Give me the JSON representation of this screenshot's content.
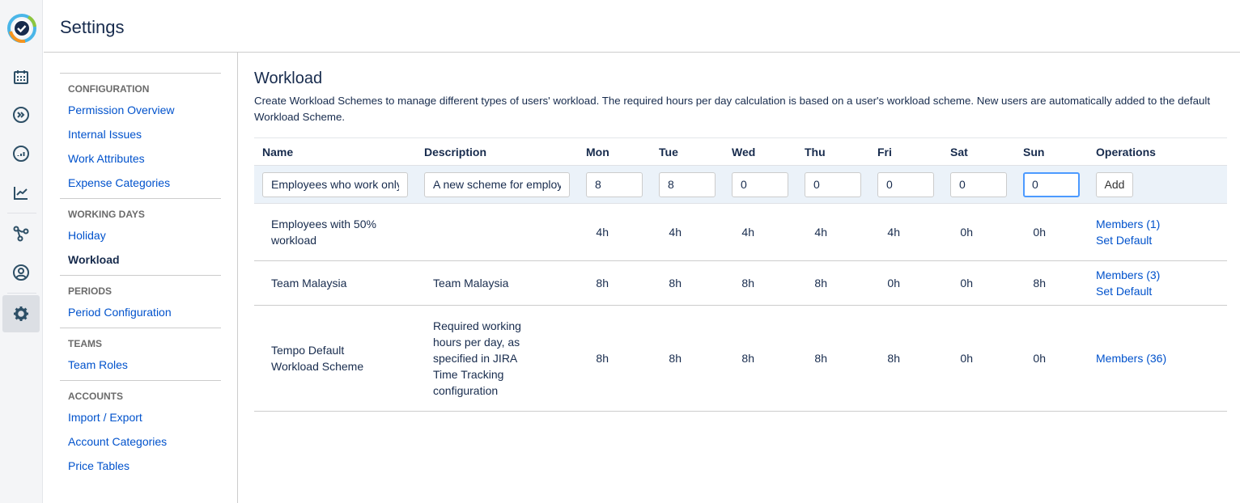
{
  "header": {
    "title": "Settings"
  },
  "menu": {
    "groups": [
      {
        "heading": "CONFIGURATION",
        "items": [
          "Permission Overview",
          "Internal Issues",
          "Work Attributes",
          "Expense Categories"
        ]
      },
      {
        "heading": "WORKING DAYS",
        "items": [
          "Holiday",
          "Workload"
        ],
        "selected": "Workload"
      },
      {
        "heading": "PERIODS",
        "items": [
          "Period Configuration"
        ]
      },
      {
        "heading": "TEAMS",
        "items": [
          "Team Roles"
        ]
      },
      {
        "heading": "ACCOUNTS",
        "items": [
          "Import / Export",
          "Account Categories",
          "Price Tables"
        ]
      }
    ]
  },
  "main": {
    "title": "Workload",
    "description": "Create Workload Schemes to manage different types of users' workload. The required hours per day calculation is based on a user's workload scheme. New users are automatically added to the default Workload Scheme.",
    "columns": [
      "Name",
      "Description",
      "Mon",
      "Tue",
      "Wed",
      "Thu",
      "Fri",
      "Sat",
      "Sun",
      "Operations"
    ],
    "new_row": {
      "name": "Employees who work only",
      "description": "A new scheme for employ",
      "days": [
        "8",
        "8",
        "0",
        "0",
        "0",
        "0",
        "0"
      ],
      "add_label": "Add"
    },
    "rows": [
      {
        "name": "Employees with 50% workload",
        "description": "",
        "days": [
          "4h",
          "4h",
          "4h",
          "4h",
          "4h",
          "0h",
          "0h"
        ],
        "members": "Members (1)",
        "set_default": "Set Default"
      },
      {
        "name": "Team Malaysia",
        "description": "Team Malaysia",
        "days": [
          "8h",
          "8h",
          "8h",
          "8h",
          "0h",
          "0h",
          "8h"
        ],
        "members": "Members (3)",
        "set_default": "Set Default"
      },
      {
        "name": "Tempo Default Workload Scheme",
        "description": "Required working hours per day, as specified in JIRA Time Tracking configuration",
        "days": [
          "8h",
          "8h",
          "8h",
          "8h",
          "8h",
          "0h",
          "0h"
        ],
        "members": "Members (36)"
      }
    ]
  },
  "rail": {
    "icons": [
      "tempo-logo-icon",
      "calendar-icon",
      "plan-icon",
      "reports-icon",
      "trend-icon",
      "integrations-icon",
      "user-icon",
      "gear-icon"
    ],
    "accent": "#0052cc"
  }
}
